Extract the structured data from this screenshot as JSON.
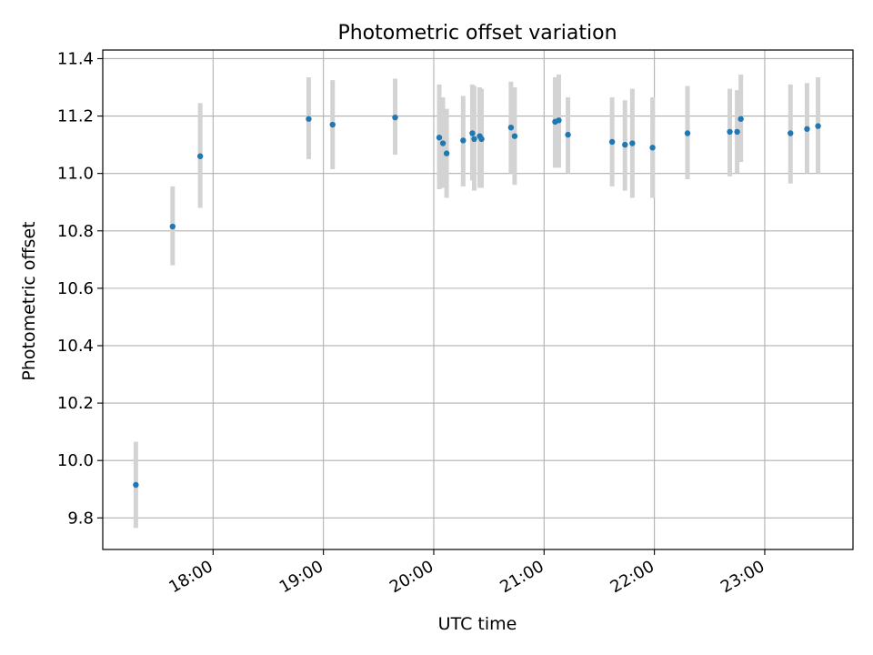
{
  "chart_data": {
    "type": "scatter",
    "title": "Photometric offset variation",
    "xlabel": "UTC time",
    "ylabel": "Photometric offset",
    "x_axis_kind": "time (HH:MM)",
    "xlim": [
      "17:00",
      "23:48"
    ],
    "ylim": [
      9.69,
      11.43
    ],
    "x_ticks": [
      "18:00",
      "19:00",
      "20:00",
      "21:00",
      "22:00",
      "23:00"
    ],
    "y_ticks": [
      "9.8",
      "10.0",
      "10.2",
      "10.4",
      "10.6",
      "10.8",
      "11.0",
      "11.2",
      "11.4"
    ],
    "grid": true,
    "colors": {
      "points": "#1f77b4",
      "error_bars": "#d3d3d3",
      "grid": "#b0b0b0"
    },
    "series": [
      {
        "points": [
          {
            "x": "17:18",
            "y": 9.915,
            "err": [
              9.765,
              10.065
            ]
          },
          {
            "x": "17:38",
            "y": 10.815,
            "err": [
              10.68,
              10.955
            ]
          },
          {
            "x": "17:53",
            "y": 11.06,
            "err": [
              10.88,
              11.245
            ]
          },
          {
            "x": "18:52",
            "y": 11.19,
            "err": [
              11.05,
              11.335
            ]
          },
          {
            "x": "19:05",
            "y": 11.17,
            "err": [
              11.015,
              11.325
            ]
          },
          {
            "x": "19:39",
            "y": 11.195,
            "err": [
              11.065,
              11.33
            ]
          },
          {
            "x": "20:03",
            "y": 11.125,
            "err": [
              10.945,
              11.31
            ]
          },
          {
            "x": "20:05",
            "y": 11.105,
            "err": [
              10.95,
              11.265
            ]
          },
          {
            "x": "20:07",
            "y": 11.07,
            "err": [
              10.915,
              11.225
            ]
          },
          {
            "x": "20:16",
            "y": 11.115,
            "err": [
              10.955,
              11.27
            ]
          },
          {
            "x": "20:21",
            "y": 11.14,
            "err": [
              10.975,
              11.31
            ]
          },
          {
            "x": "20:22",
            "y": 11.12,
            "err": [
              10.94,
              11.305
            ]
          },
          {
            "x": "20:25",
            "y": 11.13,
            "err": [
              10.95,
              11.3
            ]
          },
          {
            "x": "20:26",
            "y": 11.12,
            "err": [
              10.95,
              11.295
            ]
          },
          {
            "x": "20:42",
            "y": 11.16,
            "err": [
              11.0,
              11.32
            ]
          },
          {
            "x": "20:44",
            "y": 11.13,
            "err": [
              10.96,
              11.3
            ]
          },
          {
            "x": "21:06",
            "y": 11.18,
            "err": [
              11.02,
              11.335
            ]
          },
          {
            "x": "21:08",
            "y": 11.185,
            "err": [
              11.02,
              11.345
            ]
          },
          {
            "x": "21:13",
            "y": 11.135,
            "err": [
              11.0,
              11.265
            ]
          },
          {
            "x": "21:37",
            "y": 11.11,
            "err": [
              10.955,
              11.265
            ]
          },
          {
            "x": "21:44",
            "y": 11.1,
            "err": [
              10.94,
              11.255
            ]
          },
          {
            "x": "21:48",
            "y": 11.105,
            "err": [
              10.915,
              11.295
            ]
          },
          {
            "x": "21:59",
            "y": 11.09,
            "err": [
              10.915,
              11.265
            ]
          },
          {
            "x": "22:18",
            "y": 11.14,
            "err": [
              10.98,
              11.305
            ]
          },
          {
            "x": "22:41",
            "y": 11.145,
            "err": [
              10.99,
              11.295
            ]
          },
          {
            "x": "22:45",
            "y": 11.145,
            "err": [
              11.0,
              11.29
            ]
          },
          {
            "x": "22:47",
            "y": 11.19,
            "err": [
              11.04,
              11.345
            ]
          },
          {
            "x": "23:14",
            "y": 11.14,
            "err": [
              10.965,
              11.31
            ]
          },
          {
            "x": "23:23",
            "y": 11.155,
            "err": [
              11.0,
              11.315
            ]
          },
          {
            "x": "23:29",
            "y": 11.165,
            "err": [
              11.0,
              11.335
            ]
          }
        ]
      }
    ]
  }
}
